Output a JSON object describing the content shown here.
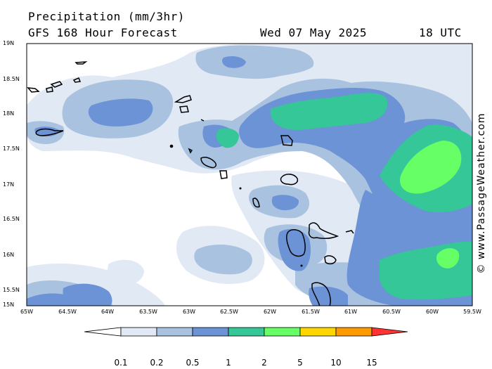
{
  "header": {
    "title": "Precipitation (mm/3hr)",
    "subtitle": "GFS 168 Hour Forecast",
    "valid_date": "Wed 07 May 2025",
    "valid_time": "18 UTC"
  },
  "watermark": "© www.PassageWeather.com",
  "axes": {
    "lat_labels": [
      "19N",
      "18.5N",
      "18N",
      "17.5N",
      "17N",
      "16.5N",
      "16N",
      "15.5N",
      "15N"
    ],
    "lon_labels": [
      "65W",
      "64.5W",
      "64W",
      "63.5W",
      "63W",
      "62.5W",
      "62W",
      "61.5W",
      "61W",
      "60.5W",
      "60W",
      "59.5W"
    ]
  },
  "colorbar": {
    "labels": [
      "0.1",
      "0.2",
      "0.5",
      "1",
      "2",
      "5",
      "10",
      "15"
    ],
    "colors": [
      "#ffffff",
      "#e1e9f4",
      "#a9c2e0",
      "#6b93d6",
      "#35c797",
      "#66ff66",
      "#ffd700",
      "#ff9900",
      "#ff3333"
    ]
  },
  "colors": {
    "level_0_1": "#e1e9f4",
    "level_0_2": "#a9c2e0",
    "level_0_5": "#6b93d6",
    "level_1": "#35c797",
    "level_2": "#66ff66"
  }
}
